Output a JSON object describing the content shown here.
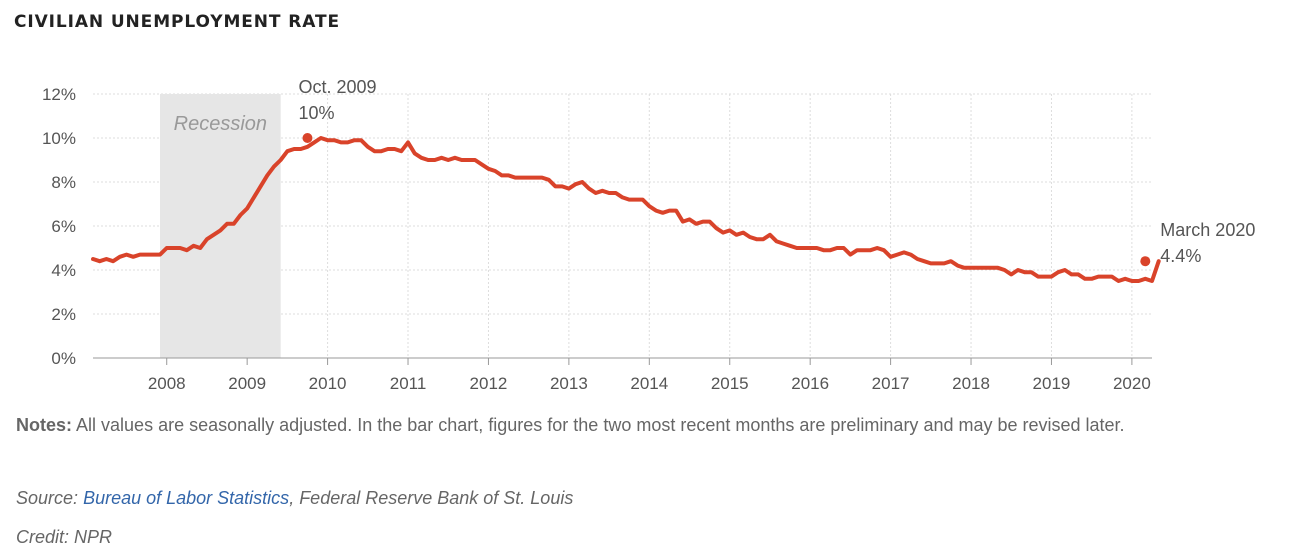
{
  "header": {
    "title": "CIVILIAN UNEMPLOYMENT RATE"
  },
  "footer": {
    "notes_label": "Notes:",
    "notes_text": "All values are seasonally adjusted. In the bar chart, figures for the two most recent months are preliminary and may be revised later.",
    "source_label": "Source:",
    "source_link": "Bureau of Labor Statistics",
    "source_rest": ", Federal Reserve Bank of St. Louis",
    "credit": "Credit: NPR"
  },
  "colors": {
    "line": "#d9432a",
    "recession": "#e6e6e6",
    "grid": "#dddddd",
    "axis": "#999999",
    "text": "#555555",
    "link": "#3366aa"
  },
  "chart_data": {
    "type": "line",
    "title": "",
    "xlabel": "",
    "ylabel": "",
    "ylim": [
      0,
      12
    ],
    "yticks": [
      0,
      2,
      4,
      6,
      8,
      10,
      12
    ],
    "ytick_labels": [
      "0%",
      "2%",
      "4%",
      "6%",
      "8%",
      "10%",
      "12%"
    ],
    "xlim": [
      "2007-02",
      "2020-04"
    ],
    "xticks": [
      "2008",
      "2009",
      "2010",
      "2011",
      "2012",
      "2013",
      "2014",
      "2015",
      "2016",
      "2017",
      "2018",
      "2019",
      "2020"
    ],
    "grid": true,
    "recession": {
      "label": "Recession",
      "start": "2007-12",
      "end": "2009-06"
    },
    "series": [
      {
        "start": "2007-02",
        "values": [
          4.5,
          4.4,
          4.5,
          4.4,
          4.6,
          4.7,
          4.6,
          4.7,
          4.7,
          4.7,
          4.7,
          5.0,
          5.0,
          5.0,
          4.9,
          5.1,
          5.0,
          5.4,
          5.6,
          5.8,
          6.1,
          6.1,
          6.5,
          6.8,
          7.3,
          7.8,
          8.3,
          8.7,
          9.0,
          9.4,
          9.5,
          9.5,
          9.6,
          9.8,
          10.0,
          9.9,
          9.9,
          9.8,
          9.8,
          9.9,
          9.9,
          9.6,
          9.4,
          9.4,
          9.5,
          9.5,
          9.4,
          9.8,
          9.3,
          9.1,
          9.0,
          9.0,
          9.1,
          9.0,
          9.1,
          9.0,
          9.0,
          9.0,
          8.8,
          8.6,
          8.5,
          8.3,
          8.3,
          8.2,
          8.2,
          8.2,
          8.2,
          8.2,
          8.1,
          7.8,
          7.8,
          7.7,
          7.9,
          8.0,
          7.7,
          7.5,
          7.6,
          7.5,
          7.5,
          7.3,
          7.2,
          7.2,
          7.2,
          6.9,
          6.7,
          6.6,
          6.7,
          6.7,
          6.2,
          6.3,
          6.1,
          6.2,
          6.2,
          5.9,
          5.7,
          5.8,
          5.6,
          5.7,
          5.5,
          5.4,
          5.4,
          5.6,
          5.3,
          5.2,
          5.1,
          5.0,
          5.0,
          5.0,
          5.0,
          4.9,
          4.9,
          5.0,
          5.0,
          4.7,
          4.9,
          4.9,
          4.9,
          5.0,
          4.9,
          4.6,
          4.7,
          4.8,
          4.7,
          4.5,
          4.4,
          4.3,
          4.3,
          4.3,
          4.4,
          4.2,
          4.1,
          4.1,
          4.1,
          4.1,
          4.1,
          4.1,
          4.0,
          3.8,
          4.0,
          3.9,
          3.9,
          3.7,
          3.7,
          3.7,
          3.9,
          4.0,
          3.8,
          3.8,
          3.6,
          3.6,
          3.7,
          3.7,
          3.7,
          3.5,
          3.6,
          3.5,
          3.5,
          3.6,
          3.5,
          4.4
        ]
      }
    ],
    "annotations": [
      {
        "date": "2009-10",
        "value": 10.0,
        "line1": "Oct. 2009",
        "line2": "10%"
      },
      {
        "date": "2020-03",
        "value": 4.4,
        "line1": "March 2020",
        "line2": "4.4%"
      }
    ]
  }
}
